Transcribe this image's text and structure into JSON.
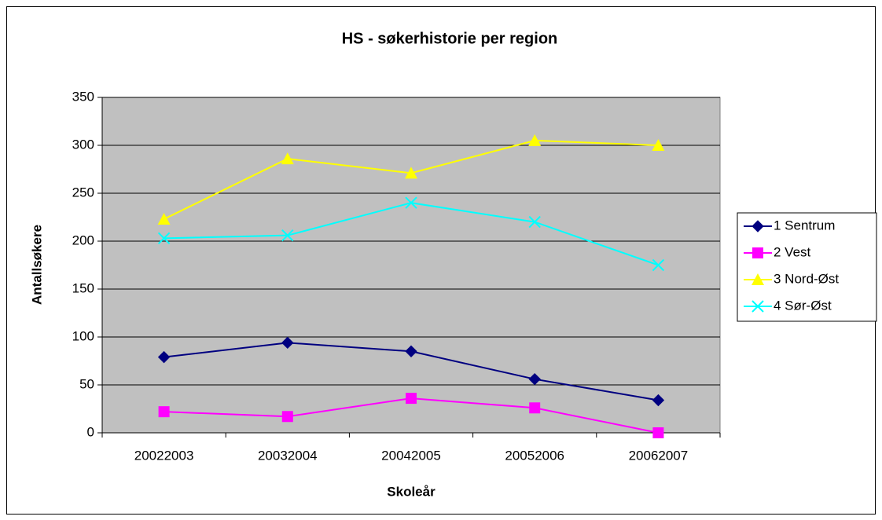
{
  "chart_data": {
    "type": "line",
    "title": "HS - søkerhistorie per region",
    "x_label": "Skoleår",
    "y_label": "Antallsøkere",
    "categories": [
      "20022003",
      "20032004",
      "20042005",
      "20052006",
      "20062007"
    ],
    "series": [
      {
        "name": "1 Sentrum",
        "color": "#000080",
        "marker": "diamond",
        "values": [
          79,
          94,
          85,
          56,
          34
        ]
      },
      {
        "name": "2 Vest",
        "color": "#ff00ff",
        "marker": "square",
        "values": [
          22,
          17,
          36,
          26,
          0
        ]
      },
      {
        "name": "3 Nord-Øst",
        "color": "#ffff00",
        "marker": "triangle",
        "values": [
          223,
          286,
          271,
          305,
          300
        ]
      },
      {
        "name": "4 Sør-Øst",
        "color": "#00ffff",
        "marker": "x",
        "values": [
          203,
          206,
          240,
          220,
          175
        ]
      }
    ],
    "ylim": [
      0,
      350
    ],
    "yticks": [
      0,
      50,
      100,
      150,
      200,
      250,
      300,
      350
    ],
    "grid": true,
    "legend": "right",
    "plot_background": "#c0c0c0"
  }
}
